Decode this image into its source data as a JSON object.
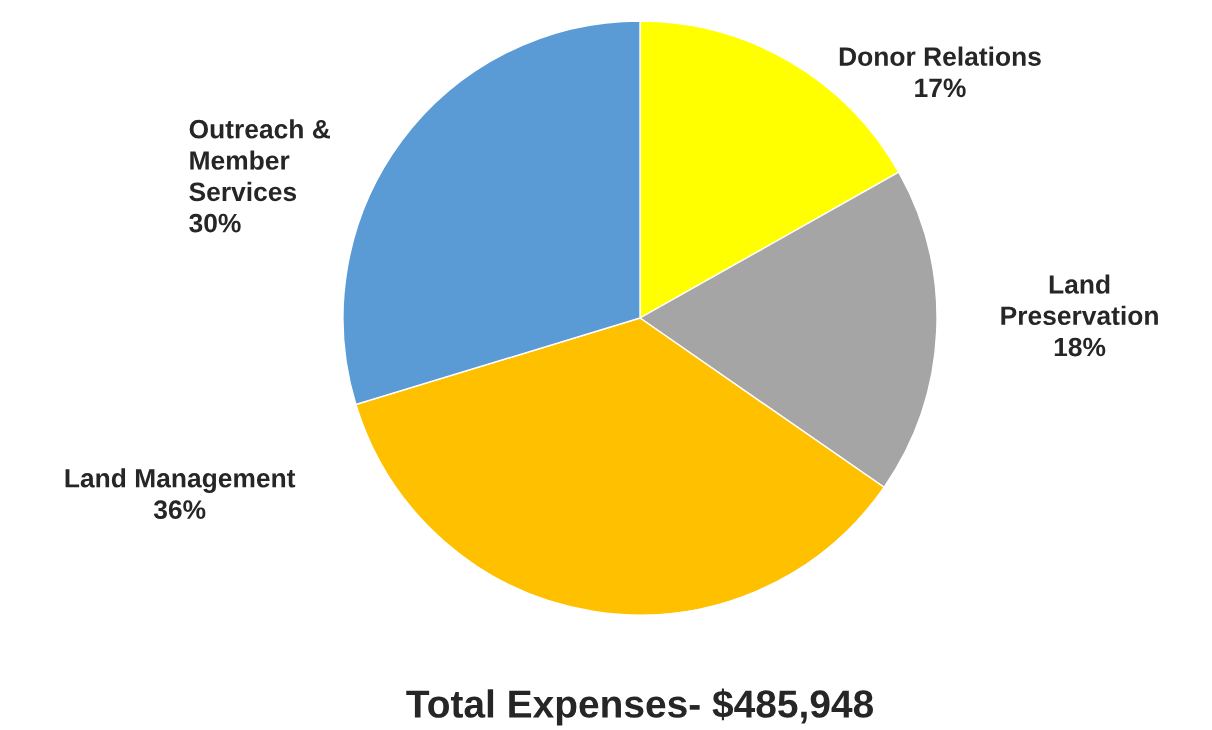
{
  "chart_data": {
    "type": "pie",
    "title": "Total Expenses- $485,948",
    "categories": [
      "Donor Relations",
      "Land\nPreservation",
      "Land Management",
      "Outreach &\nMember\nServices"
    ],
    "values": [
      17,
      18,
      36,
      30
    ],
    "value_labels": [
      "17%",
      "18%",
      "36%",
      "30%"
    ],
    "colors": [
      "#ffff00",
      "#a5a5a5",
      "#ffc000",
      "#5b9bd5"
    ]
  }
}
